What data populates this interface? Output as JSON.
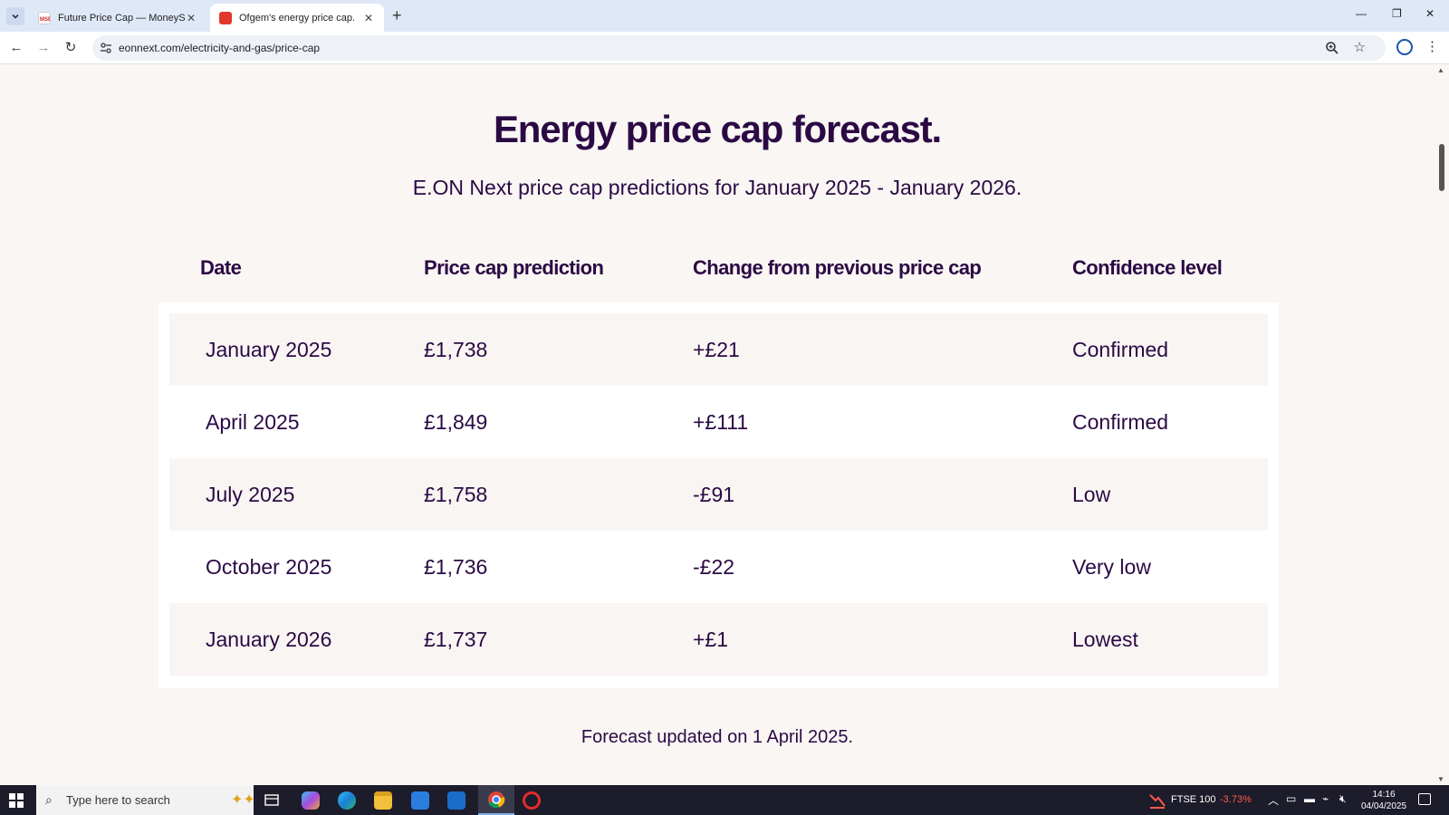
{
  "browser": {
    "tabs": [
      {
        "label": "Future Price Cap — MoneySavi",
        "favicon": "moneysavingexpert-favicon",
        "active": false
      },
      {
        "label": "Ofgem's energy price cap.",
        "favicon": "eon-next-favicon",
        "active": true
      }
    ],
    "url": "eonnext.com/electricity-and-gas/price-cap"
  },
  "page": {
    "title": "Energy price cap forecast.",
    "subtitle": "E.ON Next price cap predictions for January 2025 - January 2026.",
    "columns": [
      "Date",
      "Price cap prediction",
      "Change from previous price cap",
      "Confidence level"
    ],
    "rows": [
      {
        "date": "January 2025",
        "price": "£1,738",
        "change": "+£21",
        "confidence": "Confirmed"
      },
      {
        "date": "April 2025",
        "price": "£1,849",
        "change": "+£111",
        "confidence": "Confirmed"
      },
      {
        "date": "July 2025",
        "price": "£1,758",
        "change": "-£91",
        "confidence": "Low"
      },
      {
        "date": "October 2025",
        "price": "£1,736",
        "change": "-£22",
        "confidence": "Very low"
      },
      {
        "date": "January 2026",
        "price": "£1,737",
        "change": "+£1",
        "confidence": "Lowest"
      }
    ],
    "footnote": "Forecast updated on 1 April 2025."
  },
  "taskbar": {
    "search_placeholder": "Type here to search",
    "ftse_label": "FTSE 100",
    "ftse_change": "-3.73%",
    "time": "14:16",
    "date": "04/04/2025"
  },
  "colors": {
    "brand_text": "#2b0a44",
    "row_shade": "#f9f5f3",
    "page_bg": "#f9f6f4",
    "ftse_negative": "#ff5a4e"
  }
}
